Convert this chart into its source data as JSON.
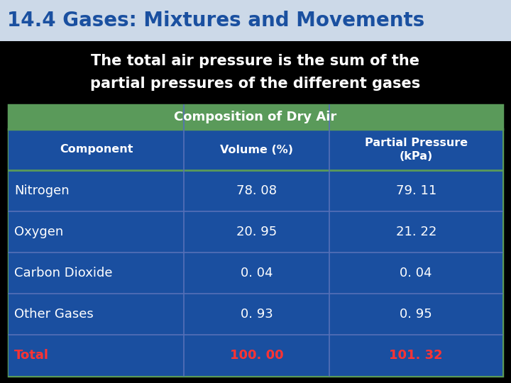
{
  "title": "14.4 Gases: Mixtures and Movements",
  "subtitle_line1": "The total air pressure is the sum of the",
  "subtitle_line2": "partial pressures of the different gases",
  "table_title": "Composition of Dry Air",
  "col_headers": [
    "Component",
    "Volume (%)",
    "Partial Pressure\n(kPa)"
  ],
  "rows": [
    [
      "Nitrogen",
      "78. 08",
      "79. 11"
    ],
    [
      "Oxygen",
      "20. 95",
      "21. 22"
    ],
    [
      "Carbon Dioxide",
      "0. 04",
      "0. 04"
    ],
    [
      "Other Gases",
      "0. 93",
      "0. 95"
    ],
    [
      "Total",
      "100. 00",
      "101. 32"
    ]
  ],
  "bg_color": "#000000",
  "title_bg_color": "#ccd9e8",
  "title_text_color": "#1a50a0",
  "subtitle_text_color": "#ffffff",
  "table_header_bg": "#5a9a5a",
  "table_header_text": "#ffffff",
  "col_header_bg": "#1a4fa0",
  "col_header_text": "#ffffff",
  "row_bg": "#1a4fa0",
  "row_text": "#ffffff",
  "total_text_color": "#ff3333",
  "table_border_color": "#5a9a5a",
  "row_divider_color": "#5570b8"
}
